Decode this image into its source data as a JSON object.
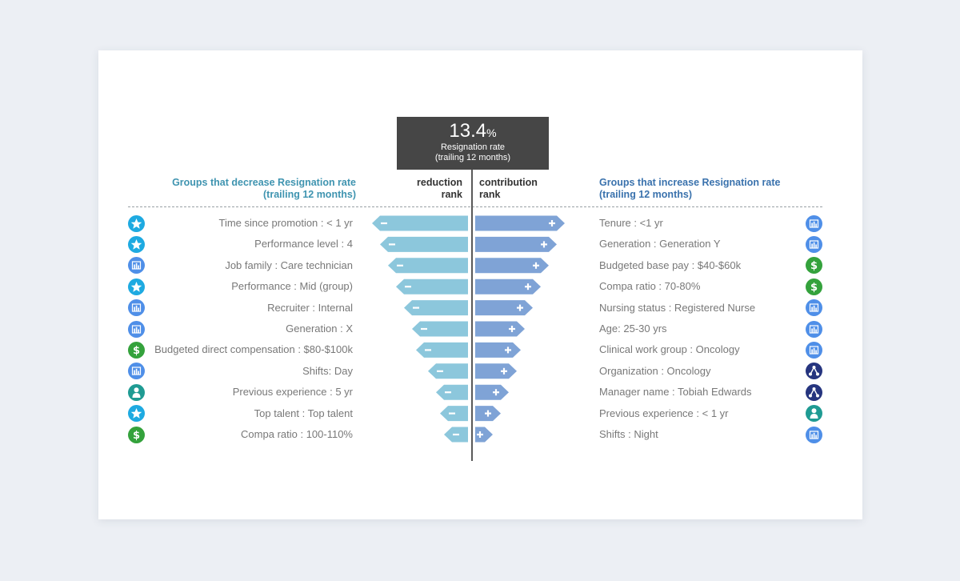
{
  "summary": {
    "value": "13.4",
    "unit": "%",
    "label": "Resignation rate",
    "sublabel": "(trailing 12 months)"
  },
  "headers": {
    "left_title": "Groups that decrease Resignation rate",
    "left_sub": "(trailing 12 months)",
    "reduction_1": "reduction",
    "reduction_2": "rank",
    "contribution_1": "contribution",
    "contribution_2": "rank",
    "right_title": "Groups that increase Resignation rate",
    "right_sub": "(trailing 12 months)"
  },
  "icon_colors": {
    "star-icon": "#1eaae1",
    "chart-icon": "#4f8fe8",
    "dollar-icon": "#34a23c",
    "person-icon": "#1f9b93",
    "network-icon": "#26357f"
  },
  "chart_data": {
    "type": "bar",
    "colors": {
      "reduction": "#8cc7dc",
      "contribution": "#7fa3d6"
    },
    "reduction": [
      {
        "label": "Time since promotion : < 1 yr",
        "icon": "star-icon",
        "rank": 11
      },
      {
        "label": "Performance level : 4",
        "icon": "star-icon",
        "rank": 10
      },
      {
        "label": "Job family : Care technician",
        "icon": "chart-icon",
        "rank": 9
      },
      {
        "label": "Performance : Mid (group)",
        "icon": "star-icon",
        "rank": 8
      },
      {
        "label": "Recruiter :  Internal",
        "icon": "chart-icon",
        "rank": 7
      },
      {
        "label": "Generation : X",
        "icon": "chart-icon",
        "rank": 6
      },
      {
        "label": "Budgeted direct compensation : $80-$100k",
        "icon": "dollar-icon",
        "rank": 5.5
      },
      {
        "label": "Shifts: Day",
        "icon": "chart-icon",
        "rank": 4
      },
      {
        "label": "Previous experience : 5 yr",
        "icon": "person-icon",
        "rank": 3
      },
      {
        "label": "Top talent : Top talent",
        "icon": "star-icon",
        "rank": 2.5
      },
      {
        "label": "Compa ratio : 100-110%",
        "icon": "dollar-icon",
        "rank": 2
      }
    ],
    "contribution": [
      {
        "label": "Tenure : <1 yr",
        "icon": "chart-icon",
        "rank": 11
      },
      {
        "label": "Generation : Generation Y",
        "icon": "chart-icon",
        "rank": 10
      },
      {
        "label": "Budgeted base pay : $40-$60k",
        "icon": "dollar-icon",
        "rank": 9
      },
      {
        "label": "Compa ratio : 70-80%",
        "icon": "dollar-icon",
        "rank": 8
      },
      {
        "label": "Nursing status : Registered Nurse",
        "icon": "chart-icon",
        "rank": 7
      },
      {
        "label": "Age: 25-30 yrs",
        "icon": "chart-icon",
        "rank": 6
      },
      {
        "label": "Clinical work group : Oncology",
        "icon": "chart-icon",
        "rank": 5.5
      },
      {
        "label": "Organization : Oncology",
        "icon": "network-icon",
        "rank": 5
      },
      {
        "label": "Manager name : Tobiah Edwards",
        "icon": "network-icon",
        "rank": 4
      },
      {
        "label": "Previous experience : < 1 yr",
        "icon": "person-icon",
        "rank": 3
      },
      {
        "label": "Shifts : Night",
        "icon": "chart-icon",
        "rank": 2
      }
    ]
  }
}
